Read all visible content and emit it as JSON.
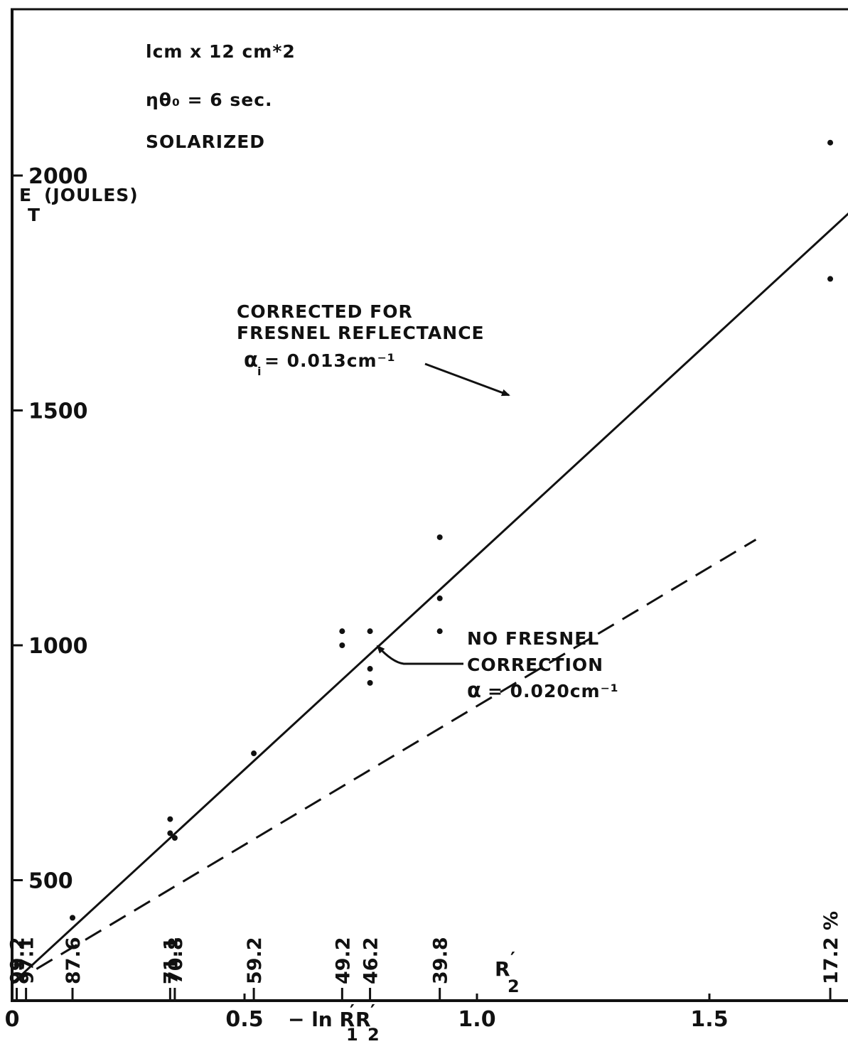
{
  "chart_data": {
    "type": "line",
    "notes": [
      "lcm x 12 cm*2",
      "ηθ₀ = 6 sec.",
      "SOLARIZED"
    ],
    "ylabel_main": "E",
    "ylabel_sub": "T",
    "ylabel_rest": "(JOULES)",
    "xlabel_main": "− ln R",
    "xlabel_sub1": "1",
    "xlabel_mid": "R",
    "xlabel_sub2": "2",
    "xlim": [
      0,
      1.8
    ],
    "ylim": [
      0,
      2100
    ],
    "x_ticks": [
      {
        "value": 0,
        "label": "0"
      },
      {
        "value": 0.5,
        "label": "0.5"
      },
      {
        "value": 1.0,
        "label": "1.0"
      },
      {
        "value": 1.5,
        "label": "1.5"
      }
    ],
    "y_ticks": [
      {
        "value": 500,
        "label": "500"
      },
      {
        "value": 1000,
        "label": "1000"
      },
      {
        "value": 1500,
        "label": "1500"
      },
      {
        "value": 2000,
        "label": "2000"
      }
    ],
    "reflectance_ticks": [
      {
        "x": 0.01,
        "label": "99.2"
      },
      {
        "x": 0.03,
        "label": "97.1"
      },
      {
        "x": 0.13,
        "label": "87.6"
      },
      {
        "x": 0.34,
        "label": "71.1"
      },
      {
        "x": 0.35,
        "label": "70.8"
      },
      {
        "x": 0.52,
        "label": "59.2"
      },
      {
        "x": 0.71,
        "label": "49.2"
      },
      {
        "x": 0.77,
        "label": "46.2"
      },
      {
        "x": 0.92,
        "label": "39.8"
      },
      {
        "x": 1.76,
        "label": "17.2 %"
      }
    ],
    "reflectance_axis_label": "R",
    "reflectance_axis_sub": "2",
    "series": [
      {
        "name_lines": [
          "CORRECTED FOR",
          "FRESNEL REFLECTANCE"
        ],
        "coefficient_symbol": "α",
        "coefficient_sub": "i",
        "coefficient_value": "= 0.013cm⁻¹",
        "style": "solid",
        "x": [
          0,
          1.8
        ],
        "y": [
          280,
          1920
        ]
      },
      {
        "name_lines": [
          "NO FRESNEL",
          "CORRECTION"
        ],
        "coefficient_symbol": "α",
        "coefficient_sub": "",
        "coefficient_value": "= 0.020cm⁻¹",
        "style": "dashed",
        "x": [
          0,
          1.6
        ],
        "y": [
          280,
          1225
        ]
      }
    ],
    "points": [
      {
        "x": 0.01,
        "y": 320
      },
      {
        "x": 0.13,
        "y": 420
      },
      {
        "x": 0.34,
        "y": 600
      },
      {
        "x": 0.34,
        "y": 630
      },
      {
        "x": 0.35,
        "y": 590
      },
      {
        "x": 0.52,
        "y": 770
      },
      {
        "x": 0.71,
        "y": 1000
      },
      {
        "x": 0.71,
        "y": 1030
      },
      {
        "x": 0.77,
        "y": 1030
      },
      {
        "x": 0.77,
        "y": 950
      },
      {
        "x": 0.77,
        "y": 920
      },
      {
        "x": 0.92,
        "y": 1030
      },
      {
        "x": 0.92,
        "y": 1100
      },
      {
        "x": 0.92,
        "y": 1230
      },
      {
        "x": 1.76,
        "y": 2070
      },
      {
        "x": 1.76,
        "y": 1780
      }
    ]
  }
}
